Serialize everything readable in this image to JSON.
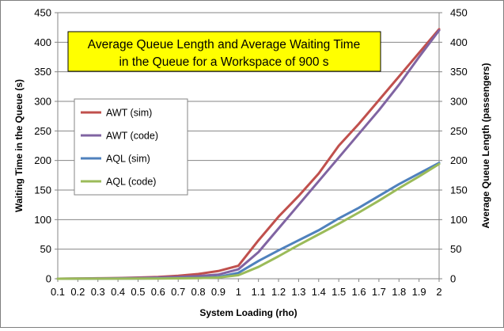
{
  "chart_data": {
    "type": "line",
    "title_lines": [
      "Average Queue Length and Average Waiting Time",
      "in the Queue for a Workspace of 900 s"
    ],
    "xlabel": "System Loading (rho)",
    "ylabel": "Waiting Time in the Queue (s)",
    "y2label": "Average Queue Length (passengers)",
    "x_ticks": [
      "0.1",
      "0.2",
      "0.3",
      "0.4",
      "0.5",
      "0.6",
      "0.7",
      "0.8",
      "0.9",
      "1",
      "1.1",
      "1.2",
      "1.3",
      "1.4",
      "1.5",
      "1.6",
      "1.7",
      "1.8",
      "1.9",
      "2"
    ],
    "x": [
      0.1,
      0.2,
      0.3,
      0.4,
      0.5,
      0.6,
      0.7,
      0.8,
      0.9,
      1.0,
      1.1,
      1.2,
      1.3,
      1.4,
      1.5,
      1.6,
      1.7,
      1.8,
      1.9,
      2.0
    ],
    "ylim": [
      0,
      450
    ],
    "y2lim": [
      0,
      450
    ],
    "y_ticks": [
      0,
      50,
      100,
      150,
      200,
      250,
      300,
      350,
      400,
      450
    ],
    "y2_ticks": [
      0,
      50,
      100,
      150,
      200,
      250,
      300,
      350,
      400,
      450
    ],
    "grid": "horizontal",
    "legend_position": "left",
    "series": [
      {
        "name": "AWT (sim)",
        "color": "#c0504d",
        "values": [
          0,
          0.3,
          0.8,
          1.2,
          2,
          3,
          5,
          8,
          13,
          22,
          65,
          105,
          140,
          178,
          225,
          262,
          302,
          342,
          382,
          422
        ]
      },
      {
        "name": "AWT (code)",
        "color": "#8064a2",
        "values": [
          0,
          0.2,
          0.5,
          0.8,
          1.3,
          2,
          3,
          4.5,
          7,
          16,
          45,
          85,
          125,
          165,
          205,
          245,
          285,
          328,
          375,
          420
        ]
      },
      {
        "name": "AQL (sim)",
        "color": "#4f81bd",
        "values": [
          0,
          0.1,
          0.2,
          0.3,
          0.4,
          0.6,
          0.9,
          1.5,
          3,
          10,
          30,
          48,
          65,
          82,
          102,
          120,
          140,
          160,
          178,
          196
        ]
      },
      {
        "name": "AQL (code)",
        "color": "#9bbb59",
        "values": [
          0,
          0.1,
          0.1,
          0.2,
          0.3,
          0.4,
          0.6,
          1,
          2,
          6,
          20,
          38,
          57,
          75,
          93,
          112,
          132,
          153,
          173,
          194
        ]
      }
    ]
  }
}
